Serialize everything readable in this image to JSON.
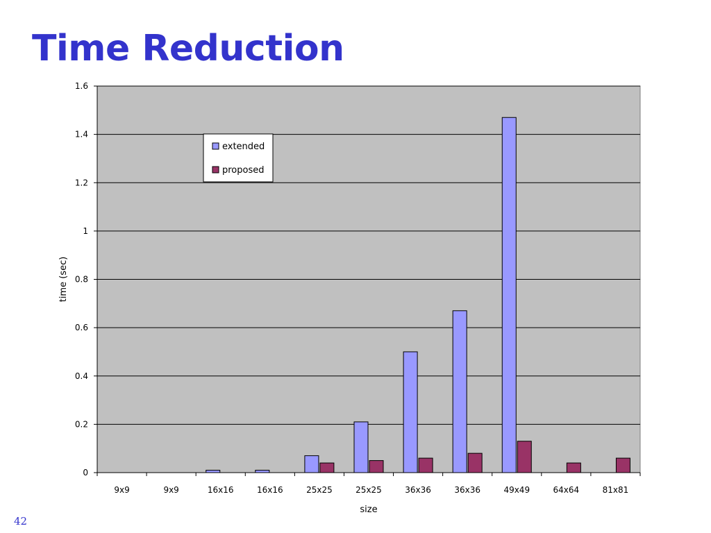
{
  "slide": {
    "title": "Time Reduction",
    "page_number": "42"
  },
  "colors": {
    "extended": "#9999ff",
    "proposed": "#993366",
    "plot_background": "#c0c0c0",
    "title": "#3333cc"
  },
  "chart_data": {
    "type": "bar",
    "title": "",
    "xlabel": "size",
    "ylabel": "time (sec)",
    "ylim": [
      0,
      1.6
    ],
    "yticks": [
      0,
      0.2,
      0.4,
      0.6,
      0.8,
      1,
      1.2,
      1.4,
      1.6
    ],
    "grid": true,
    "legend_position": "top-left",
    "categories": [
      "9x9",
      "9x9",
      "16x16",
      "16x16",
      "25x25",
      "25x25",
      "36x36",
      "36x36",
      "49x49",
      "64x64",
      "81x81"
    ],
    "series": [
      {
        "name": "extended",
        "values": [
          0,
          0,
          0.01,
          0.01,
          0.07,
          0.21,
          0.5,
          0.67,
          1.47,
          0,
          0
        ]
      },
      {
        "name": "proposed",
        "values": [
          0,
          0,
          0,
          0,
          0.04,
          0.05,
          0.06,
          0.08,
          0.13,
          0.04,
          0.06
        ]
      }
    ]
  }
}
